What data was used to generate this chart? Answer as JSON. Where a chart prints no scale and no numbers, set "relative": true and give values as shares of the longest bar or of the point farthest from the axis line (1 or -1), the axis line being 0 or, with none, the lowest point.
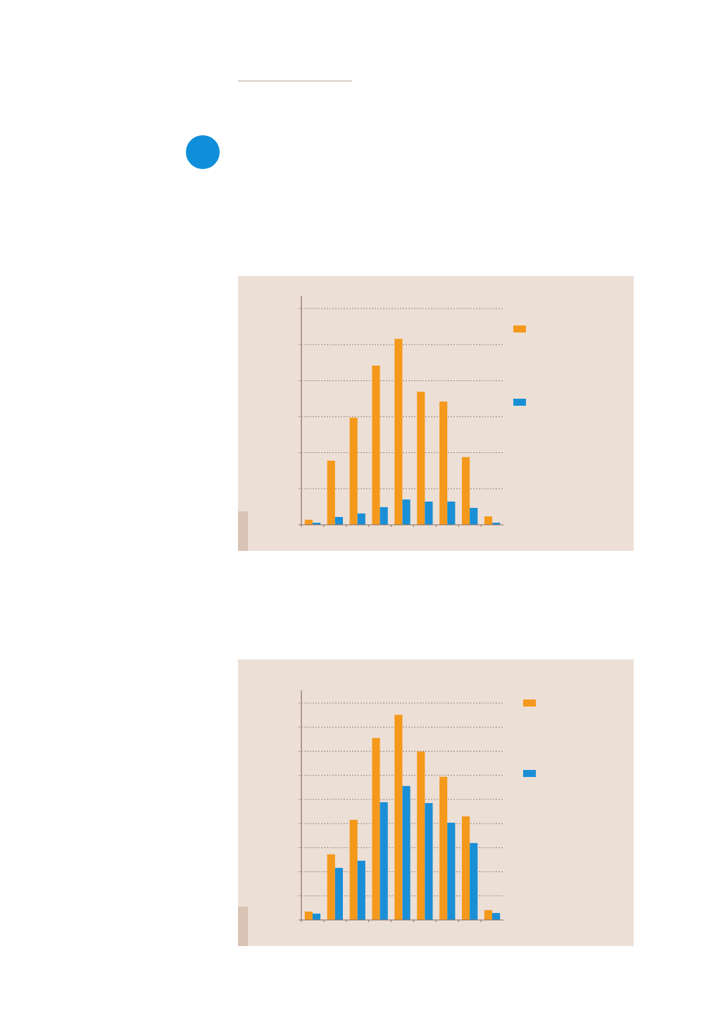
{
  "chart_data": [
    {
      "type": "bar",
      "relative": true,
      "categories": [
        null,
        null,
        null,
        null,
        null,
        null,
        null,
        null,
        null
      ],
      "series": [
        {
          "color": "#f5991c",
          "values": [
            0.027,
            0.345,
            0.576,
            0.856,
            1,
            0.716,
            0.663,
            0.364,
            0.045
          ]
        },
        {
          "color": "#1a8fd6",
          "values": [
            0.011,
            0.042,
            0.061,
            0.095,
            0.136,
            0.125,
            0.125,
            0.091,
            0.011
          ]
        }
      ],
      "ref_lines": [
        {
          "axis": "y",
          "value": 0.194,
          "color": "#8b6f5e",
          "line_style": "dashed"
        },
        {
          "axis": "y",
          "value": 0.388,
          "color": "#8b6f5e",
          "line_style": "dashed"
        },
        {
          "axis": "y",
          "value": 0.581,
          "color": "#8b6f5e",
          "line_style": "dashed"
        },
        {
          "axis": "y",
          "value": 0.775,
          "color": "#8b6f5e",
          "line_style": "dashed"
        },
        {
          "axis": "y",
          "value": 0.969,
          "color": "#8b6f5e",
          "line_style": "dashed"
        },
        {
          "axis": "y",
          "value": 1.163,
          "color": "#8b6f5e",
          "line_style": "dashed"
        }
      ]
    },
    {
      "type": "bar",
      "relative": true,
      "categories": [
        null,
        null,
        null,
        null,
        null,
        null,
        null,
        null,
        null
      ],
      "series": [
        {
          "color": "#f5991c",
          "values": [
            0.041,
            0.32,
            0.488,
            0.887,
            1,
            0.821,
            0.698,
            0.505,
            0.048
          ]
        },
        {
          "color": "#1a8fd6",
          "values": [
            0.031,
            0.254,
            0.289,
            0.574,
            0.653,
            0.57,
            0.474,
            0.375,
            0.034
          ]
        }
      ],
      "ref_lines": [
        {
          "axis": "y",
          "value": 0.1175,
          "color": "#8b6f5e",
          "line_style": "dashed"
        },
        {
          "axis": "y",
          "value": 0.235,
          "color": "#8b6f5e",
          "line_style": "dashed"
        },
        {
          "axis": "y",
          "value": 0.3525,
          "color": "#8b6f5e",
          "line_style": "dashed"
        },
        {
          "axis": "y",
          "value": 0.47,
          "color": "#8b6f5e",
          "line_style": "dashed"
        },
        {
          "axis": "y",
          "value": 0.5875,
          "color": "#8b6f5e",
          "line_style": "dashed"
        },
        {
          "axis": "y",
          "value": 0.705,
          "color": "#8b6f5e",
          "line_style": "dashed"
        },
        {
          "axis": "y",
          "value": 0.8225,
          "color": "#8b6f5e",
          "line_style": "dashed"
        },
        {
          "axis": "y",
          "value": 0.94,
          "color": "#8b6f5e",
          "line_style": "dashed"
        },
        {
          "axis": "y",
          "value": 1.0575,
          "color": "#8b6f5e",
          "line_style": "dashed"
        }
      ]
    }
  ]
}
